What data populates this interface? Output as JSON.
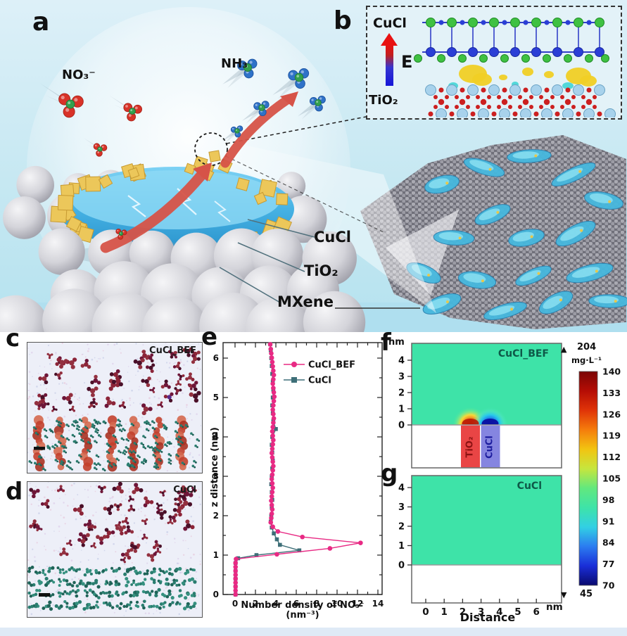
{
  "panels": {
    "a": "a",
    "b": "b",
    "c": "c",
    "d": "d",
    "e": "e",
    "f": "f",
    "g": "g"
  },
  "panel_a": {
    "no3_label": "NO₃⁻",
    "nh3_label": "NH₃",
    "cucl_label": "CuCl",
    "tio2_label": "TiO₂",
    "mxene_label": "MXene"
  },
  "panel_b": {
    "top_label": "CuCl",
    "field_label": "E",
    "bottom_label": "TiO₂"
  },
  "panel_c": {
    "label": "CuCl_BEF"
  },
  "panel_d": {
    "label": "CuCl"
  },
  "chart_data": [
    {
      "id": "panel_e",
      "type": "line",
      "xlabel": "Number density of NO₃⁻ (nm⁻³)",
      "ylabel": "z distance (nm)",
      "xlim": [
        0,
        14
      ],
      "ylim": [
        0,
        6.4
      ],
      "x_major_ticks": [
        0,
        2,
        4,
        6,
        8,
        10,
        12,
        14
      ],
      "y_major_ticks": [
        0,
        1,
        2,
        3,
        4,
        5,
        6
      ],
      "legend_position": "top-right",
      "series": [
        {
          "name": "CuCl_BEF",
          "color": "#e82a84",
          "marker": "circle",
          "points": [
            [
              0.05,
              0
            ],
            [
              0.05,
              0.1
            ],
            [
              0.05,
              0.2
            ],
            [
              0.05,
              0.3
            ],
            [
              0.05,
              0.4
            ],
            [
              0.05,
              0.5
            ],
            [
              0.05,
              0.6
            ],
            [
              0.05,
              0.7
            ],
            [
              0.05,
              0.8
            ],
            [
              0.1,
              0.9
            ],
            [
              4.1,
              1.02
            ],
            [
              9.3,
              1.17
            ],
            [
              12.3,
              1.31
            ],
            [
              6.6,
              1.46
            ],
            [
              4.2,
              1.6
            ],
            [
              3.7,
              1.72
            ],
            [
              3.5,
              1.83
            ],
            [
              3.55,
              1.94
            ],
            [
              3.6,
              2.05
            ],
            [
              3.65,
              2.16
            ],
            [
              3.6,
              2.27
            ],
            [
              3.55,
              2.38
            ],
            [
              3.6,
              2.49
            ],
            [
              3.65,
              2.6
            ],
            [
              3.7,
              2.71
            ],
            [
              3.65,
              2.82
            ],
            [
              3.6,
              2.93
            ],
            [
              3.65,
              3.04
            ],
            [
              3.7,
              3.15
            ],
            [
              3.75,
              3.26
            ],
            [
              3.7,
              3.37
            ],
            [
              3.65,
              3.48
            ],
            [
              3.6,
              3.59
            ],
            [
              3.65,
              3.7
            ],
            [
              3.7,
              3.81
            ],
            [
              3.75,
              3.92
            ],
            [
              3.7,
              4.03
            ],
            [
              3.65,
              4.14
            ],
            [
              3.7,
              4.25
            ],
            [
              3.75,
              4.36
            ],
            [
              3.8,
              4.47
            ],
            [
              3.75,
              4.58
            ],
            [
              3.7,
              4.69
            ],
            [
              3.75,
              4.8
            ],
            [
              3.8,
              4.91
            ],
            [
              3.85,
              5.02
            ],
            [
              3.8,
              5.13
            ],
            [
              3.75,
              5.24
            ],
            [
              3.7,
              5.35
            ],
            [
              3.75,
              5.46
            ],
            [
              3.8,
              5.57
            ],
            [
              3.75,
              5.68
            ],
            [
              3.7,
              5.79
            ],
            [
              3.65,
              5.9
            ],
            [
              3.6,
              6.01
            ],
            [
              3.55,
              6.12
            ],
            [
              3.5,
              6.23
            ],
            [
              3.45,
              6.35
            ]
          ]
        },
        {
          "name": "CuCl",
          "color": "#3e6f78",
          "marker": "square",
          "points": [
            [
              0.05,
              0
            ],
            [
              0.05,
              0.2
            ],
            [
              0.05,
              0.4
            ],
            [
              0.05,
              0.6
            ],
            [
              0.05,
              0.8
            ],
            [
              0.3,
              0.92
            ],
            [
              2.1,
              1.0
            ],
            [
              6.3,
              1.12
            ],
            [
              4.4,
              1.26
            ],
            [
              4.1,
              1.4
            ],
            [
              3.8,
              1.55
            ],
            [
              3.6,
              1.7
            ],
            [
              3.5,
              1.85
            ],
            [
              3.55,
              2.0
            ],
            [
              3.6,
              2.2
            ],
            [
              3.65,
              2.4
            ],
            [
              3.6,
              2.6
            ],
            [
              3.55,
              2.8
            ],
            [
              3.6,
              3.0
            ],
            [
              3.65,
              3.2
            ],
            [
              3.7,
              3.4
            ],
            [
              3.65,
              3.6
            ],
            [
              3.6,
              3.8
            ],
            [
              3.65,
              4.0
            ],
            [
              4.0,
              4.2
            ],
            [
              3.75,
              4.4
            ],
            [
              3.7,
              4.6
            ],
            [
              3.65,
              4.8
            ],
            [
              3.7,
              5.0
            ],
            [
              3.75,
              5.2
            ],
            [
              3.7,
              5.4
            ],
            [
              3.65,
              5.6
            ],
            [
              3.6,
              5.8
            ],
            [
              3.55,
              6.0
            ],
            [
              3.5,
              6.2
            ],
            [
              3.45,
              6.35
            ]
          ]
        }
      ]
    },
    {
      "id": "panel_f",
      "type": "heatmap",
      "label": "CuCl_BEF",
      "y_unit": "nm",
      "y_ticks": [
        4,
        3,
        2,
        1,
        0
      ],
      "field_color": "#3ee3a8",
      "pillars": [
        {
          "name": "TiO₂",
          "color": "#e94545",
          "label_color": "#8c1212",
          "anomaly": "hot"
        },
        {
          "name": "CuCl",
          "color": "#8585e0",
          "label_color": "#1c1c9e",
          "anomaly": "cold"
        }
      ]
    },
    {
      "id": "panel_g",
      "type": "heatmap",
      "label": "CuCl",
      "field_color": "#3ee3a8",
      "y_ticks": [
        4,
        3,
        2,
        1,
        0
      ],
      "x_ticks": [
        0,
        1,
        2,
        3,
        4,
        5,
        6
      ],
      "x_unit": "nm",
      "x_title": "Distance",
      "uniform": true
    }
  ],
  "colorbar": {
    "orientation": "vertical",
    "max_marker": "▲",
    "max_value": 204,
    "unit": "mg·L⁻¹",
    "tick_values": [
      140,
      133,
      126,
      119,
      112,
      105,
      98,
      91,
      84,
      77,
      70
    ],
    "min_marker": "▼",
    "min_value": 45,
    "gradient": [
      "#7a0505",
      "#b50d05",
      "#e03408",
      "#f57d0c",
      "#f2c411",
      "#c6e63e",
      "#62e87e",
      "#3ee3a8",
      "#32d0e4",
      "#2b7cf0",
      "#1a2ed8",
      "#090a6e"
    ]
  }
}
